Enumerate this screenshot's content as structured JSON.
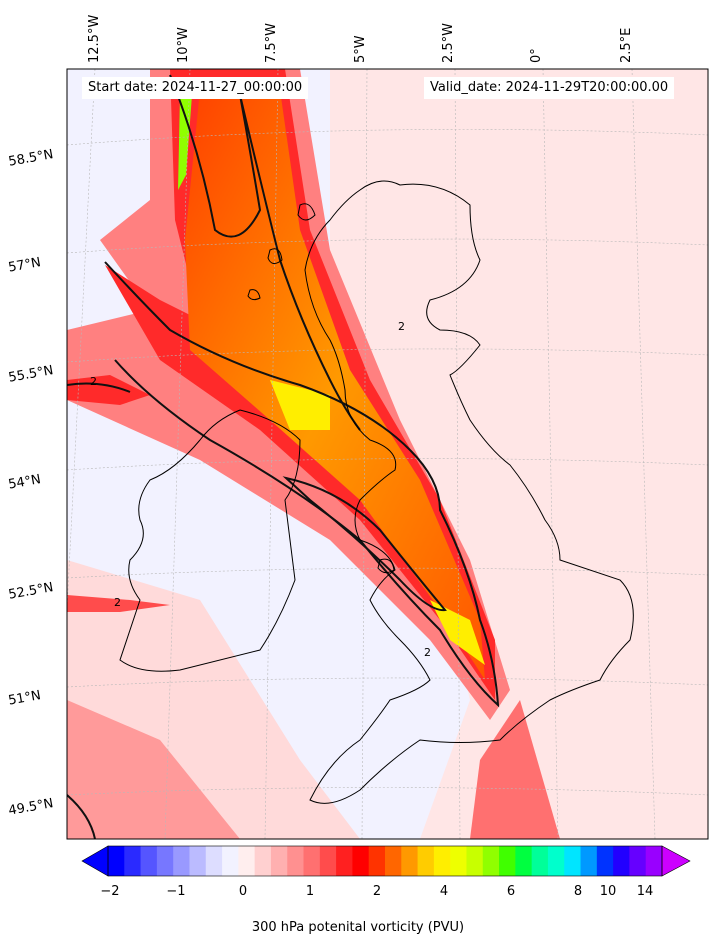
{
  "map": {
    "start_date": "Start date: 2024-11-27_00:00:00",
    "valid_date": "Valid_date: 2024-11-29T20:00:00.00",
    "lon_ticks": [
      "12.5°W",
      "10°W",
      "7.5°W",
      "5°W",
      "2.5°W",
      "0°",
      "2.5°E"
    ],
    "lat_ticks": [
      "58.5°N",
      "57°N",
      "55.5°N",
      "54°N",
      "52.5°N",
      "51°N",
      "49.5°N"
    ],
    "contour_label": "2"
  },
  "colorbar": {
    "label": "300 hPa potenital vorticity (PVU)",
    "ticks": [
      "−2",
      "−1",
      "0",
      "1",
      "2",
      "4",
      "6",
      "8",
      "10",
      "14"
    ],
    "colors": [
      "#0000ff",
      "#2a2aff",
      "#5555ff",
      "#7777ff",
      "#9999ff",
      "#bbbbff",
      "#ddddff",
      "#f2f2ff",
      "#ffeeee",
      "#ffd0d0",
      "#ffb0b0",
      "#ff9090",
      "#ff7070",
      "#ff4c4c",
      "#ff2020",
      "#ff0000",
      "#ff3300",
      "#ff6600",
      "#ff9900",
      "#ffcc00",
      "#ffee00",
      "#eeff00",
      "#c8ff00",
      "#90ff00",
      "#40ff00",
      "#00ff40",
      "#00ff99",
      "#00ffcc",
      "#00e5ff",
      "#0099ff",
      "#0033ff",
      "#2200ff",
      "#6600ff",
      "#9900ff"
    ]
  }
}
